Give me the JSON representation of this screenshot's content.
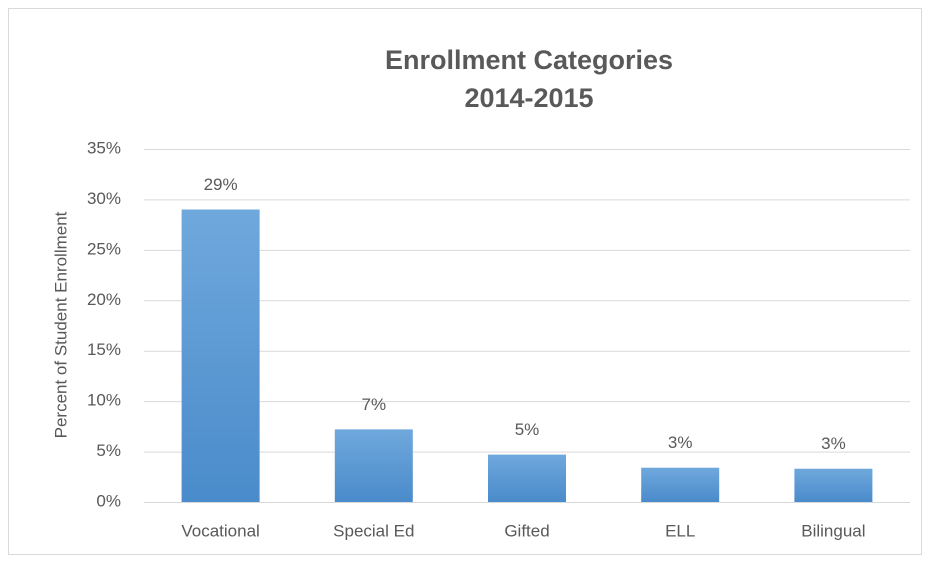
{
  "chart_data": {
    "type": "bar",
    "title": "Enrollment Categories",
    "subtitle": "2014-2015",
    "y_label": "Percent of Student Enrollment",
    "categories": [
      "Vocational",
      "Special Ed",
      "Gifted",
      "ELL",
      "Bilingual"
    ],
    "values": [
      29,
      7.2,
      4.7,
      3.4,
      3.3
    ],
    "value_labels": [
      "29%",
      "7%",
      "5%",
      "3%",
      "3%"
    ],
    "color": "#5b9bd5",
    "ylim": [
      0,
      35
    ],
    "yticks": [
      {
        "value": 0,
        "label": "0%"
      },
      {
        "value": 5,
        "label": "5%"
      },
      {
        "value": 10,
        "label": "10%"
      },
      {
        "value": 15,
        "label": "15%"
      },
      {
        "value": 20,
        "label": "20%"
      },
      {
        "value": 25,
        "label": "25%"
      },
      {
        "value": 30,
        "label": "30%"
      },
      {
        "value": 35,
        "label": "35%"
      }
    ],
    "grid": true
  }
}
